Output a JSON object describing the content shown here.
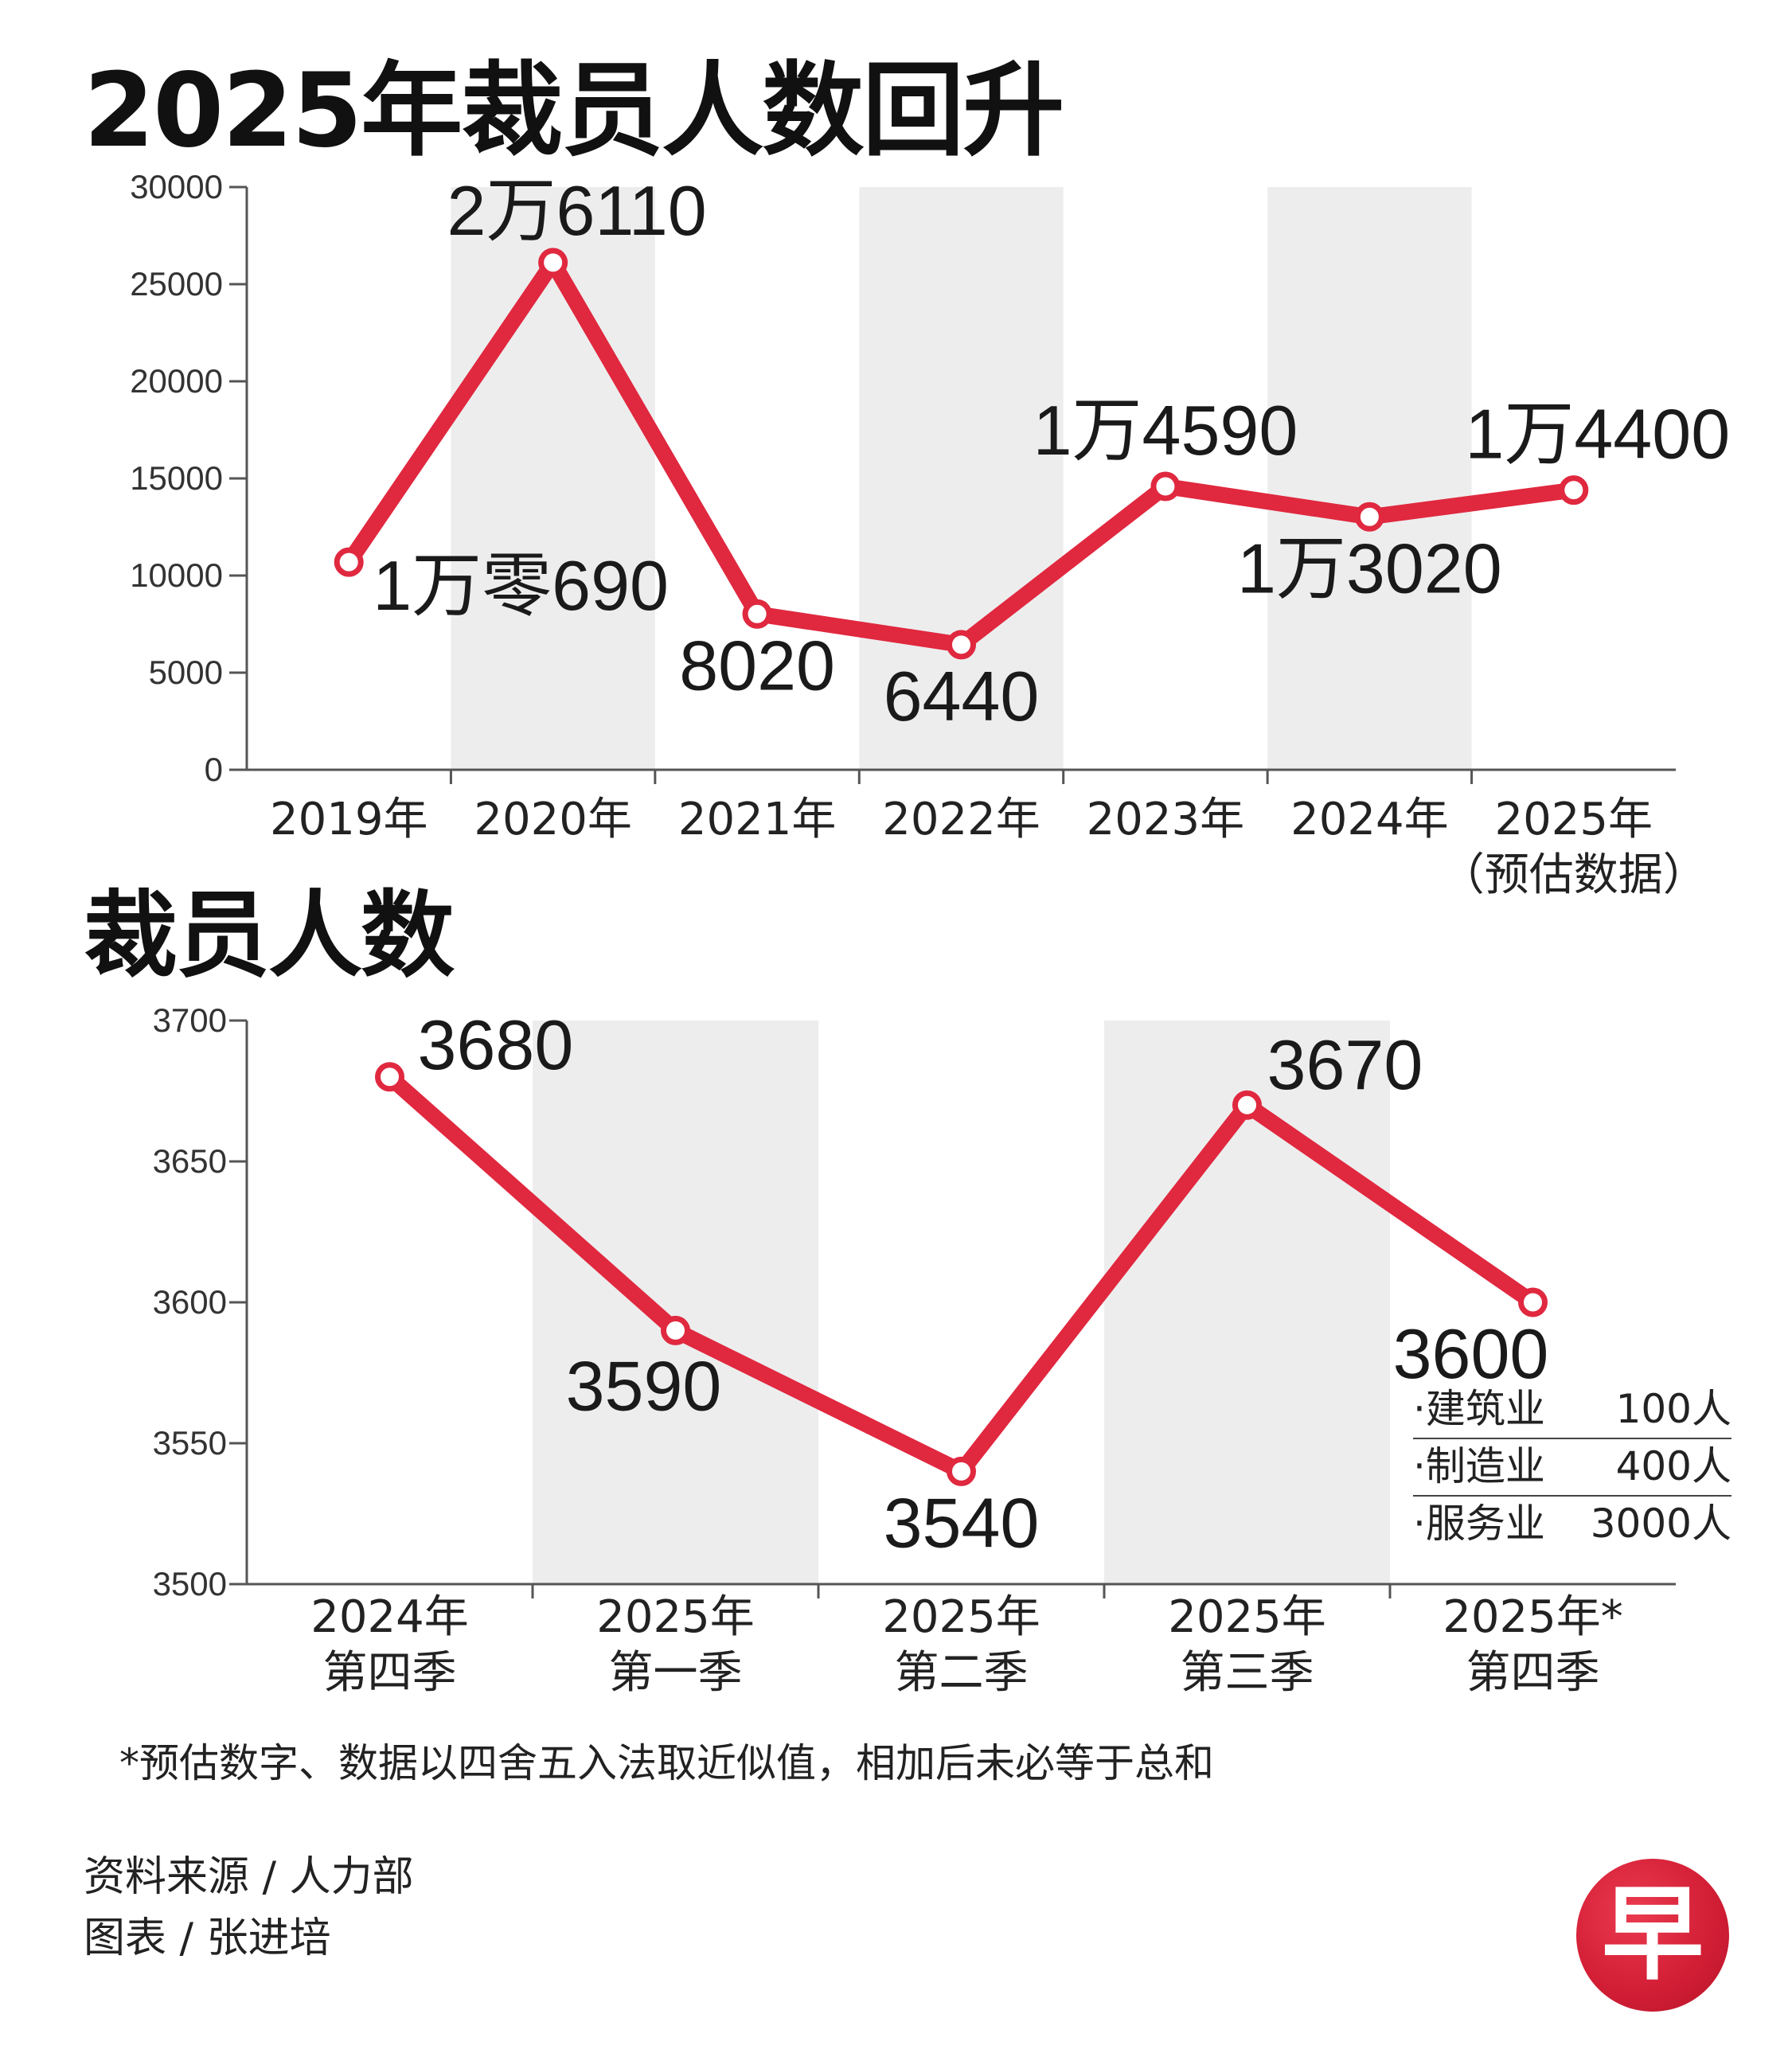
{
  "brand": {
    "accent": "#e0283f",
    "band": "#ededed",
    "logo_text": "早"
  },
  "chart_data": [
    {
      "type": "line",
      "title": "2025年裁员人数回升",
      "categories": [
        "2019年",
        "2020年",
        "2021年",
        "2022年",
        "2023年",
        "2024年",
        "2025年"
      ],
      "category_notes": [
        "",
        "",
        "",
        "",
        "",
        "",
        "（预估数据）"
      ],
      "values": [
        10690,
        26110,
        8020,
        6440,
        14590,
        13020,
        14400
      ],
      "data_labels": [
        "1万零690",
        "2万6110",
        "8020",
        "6440",
        "1万4590",
        "1万3020",
        "1万4400"
      ],
      "yticks": [
        "0",
        "5000",
        "10000",
        "15000",
        "20000",
        "25000",
        "30000"
      ],
      "ylim": [
        0,
        30000
      ],
      "color": "#e0283f",
      "grid": false
    },
    {
      "type": "line",
      "title": "裁员人数",
      "categories": [
        "2024年\n第四季",
        "2025年\n第一季",
        "2025年\n第二季",
        "2025年\n第三季",
        "2025年*\n第四季"
      ],
      "category_lines": [
        [
          "2024年",
          "第四季"
        ],
        [
          "2025年",
          "第一季"
        ],
        [
          "2025年",
          "第二季"
        ],
        [
          "2025年",
          "第三季"
        ],
        [
          "2025年*",
          "第四季"
        ]
      ],
      "values": [
        3680,
        3590,
        3540,
        3670,
        3600
      ],
      "data_labels": [
        "3680",
        "3590",
        "3540",
        "3670",
        "3600"
      ],
      "yticks": [
        "3500",
        "3550",
        "3600",
        "3650",
        "3700"
      ],
      "ylim": [
        3500,
        3700
      ],
      "color": "#e0283f",
      "grid": false,
      "breakdown": [
        {
          "sector": "·建筑业",
          "count": "100人"
        },
        {
          "sector": "·制造业",
          "count": "400人"
        },
        {
          "sector": "·服务业",
          "count": "3000人"
        }
      ]
    }
  ],
  "footnote": "*预估数字、数据以四舍五入法取近似值，相加后未必等于总和",
  "source": "资料来源 / 人力部",
  "graphics": "图表 / 张进培"
}
